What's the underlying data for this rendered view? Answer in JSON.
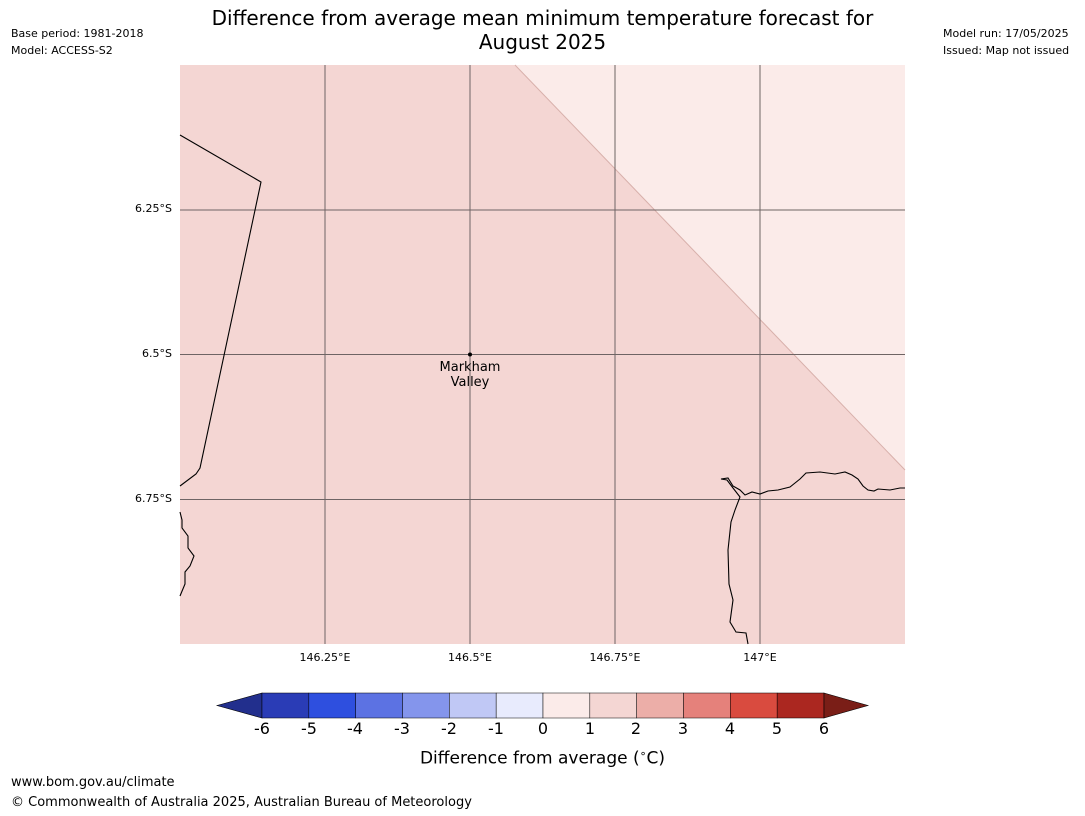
{
  "header": {
    "title_line1": "Difference from average mean minimum temperature forecast for",
    "title_line2": "August 2025",
    "base_period": "Base period: 1981-2018",
    "model": "Model: ACCESS-S2",
    "model_run": "Model run: 17/05/2025",
    "issued": "Issued: Map not issued"
  },
  "map": {
    "lat_labels": [
      "6.25°S",
      "6.5°S",
      "6.75°S"
    ],
    "lon_labels": [
      "146.25°E",
      "146.5°E",
      "146.75°E",
      "147°E"
    ],
    "place": {
      "name_line1": "Markham",
      "name_line2": "Valley"
    },
    "fill_colors": {
      "anomaly_1_to_2": "#f4d6d3",
      "anomaly_0_to_1": "#fbebe9"
    }
  },
  "colorbar": {
    "ticks": [
      "-6",
      "-5",
      "-4",
      "-3",
      "-2",
      "-1",
      "0",
      "1",
      "2",
      "3",
      "4",
      "5",
      "6"
    ],
    "colors": [
      "#222f8d",
      "#2a3cb6",
      "#2e4fdf",
      "#5c72e3",
      "#8495ec",
      "#c0c8f5",
      "#e8ebfd",
      "#fbebe9",
      "#f4d6d3",
      "#ecaea8",
      "#e5817b",
      "#d94b3f",
      "#ab2720",
      "#7a1e17"
    ],
    "label": "Difference from average ($^\\circ$C)",
    "label_text": "Difference from average (",
    "label_unit": "C)"
  },
  "footer": {
    "url": "www.bom.gov.au/climate",
    "copyright": "© Commonwealth of Australia 2025, Australian Bureau of Meteorology"
  }
}
